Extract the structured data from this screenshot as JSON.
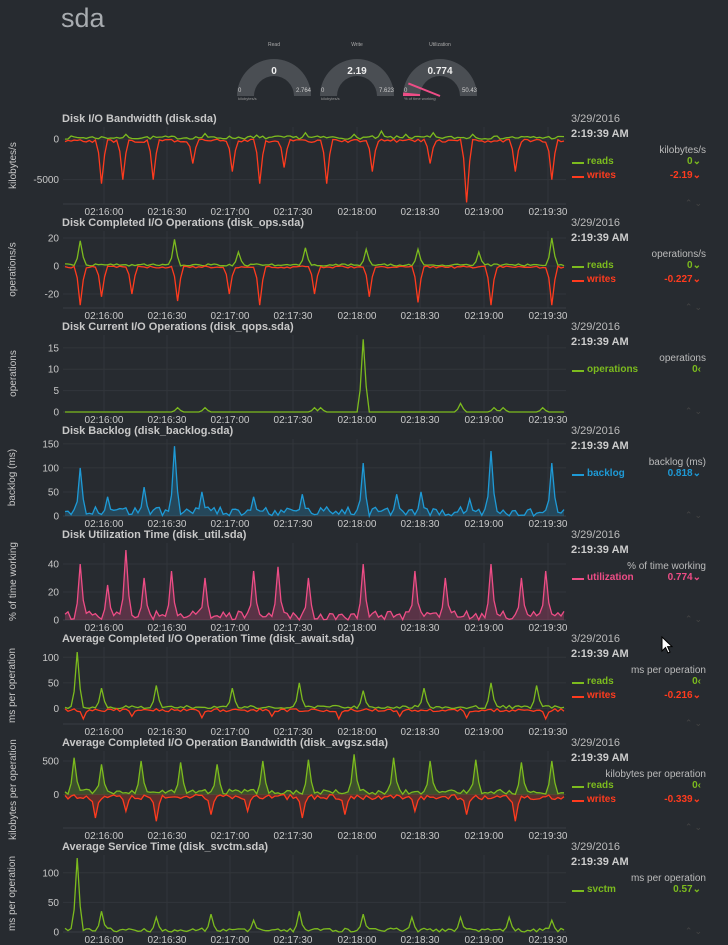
{
  "page_title": "sda",
  "gauges": [
    {
      "title": "Read",
      "value": "0",
      "min": "0",
      "max": "2.764",
      "unit": "kilobytes/s",
      "fraction": 0,
      "color": "#7cbb1e"
    },
    {
      "title": "Write",
      "value": "2.19",
      "min": "0",
      "max": "7.623",
      "unit": "kilobytes/s",
      "fraction": 0,
      "color": "#ff3b1e"
    },
    {
      "title": "Utilization",
      "value": "0.774",
      "min": "0",
      "max": "50.43",
      "unit": "% of time working",
      "fraction": 0.0153,
      "color": "#ee4d86"
    }
  ],
  "x_ticks": [
    "02:16:00",
    "02:16:30",
    "02:17:00",
    "02:17:30",
    "02:18:00",
    "02:18:30",
    "02:19:00",
    "02:19:30"
  ],
  "charts": [
    {
      "id": "sda-bandwidth",
      "title": "Disk I/O Bandwidth (disk.sda)",
      "ylabel": "kilobytes/s",
      "date": "3/29/2016",
      "time": "2:19:39 AM",
      "units": "kilobytes/s",
      "y_ticks": [
        "0",
        "-5000"
      ],
      "series": [
        {
          "name": "reads",
          "value": "0",
          "arrow": "⌄",
          "color": "#7cbb1e"
        },
        {
          "name": "writes",
          "value": "-2.19",
          "arrow": "⌄",
          "color": "#ff3b1e"
        }
      ]
    },
    {
      "id": "sda-ops",
      "title": "Disk Completed I/O Operations (disk_ops.sda)",
      "ylabel": "operations/s",
      "date": "3/29/2016",
      "time": "2:19:39 AM",
      "units": "operations/s",
      "y_ticks": [
        "20",
        "0",
        "-20"
      ],
      "series": [
        {
          "name": "reads",
          "value": "0",
          "arrow": "⌄",
          "color": "#7cbb1e"
        },
        {
          "name": "writes",
          "value": "-0.227",
          "arrow": "⌄",
          "color": "#ff3b1e"
        }
      ]
    },
    {
      "id": "sda-qops",
      "title": "Disk Current I/O Operations (disk_qops.sda)",
      "ylabel": "operations",
      "date": "3/29/2016",
      "time": "2:19:39 AM",
      "units": "operations",
      "y_ticks": [
        "15",
        "10",
        "5",
        "0"
      ],
      "series": [
        {
          "name": "operations",
          "value": "0",
          "arrow": "‹",
          "color": "#7cbb1e"
        }
      ]
    },
    {
      "id": "sda-backlog",
      "title": "Disk Backlog (disk_backlog.sda)",
      "ylabel": "backlog (ms)",
      "date": "3/29/2016",
      "time": "2:19:39 AM",
      "units": "backlog (ms)",
      "y_ticks": [
        "150",
        "100",
        "50",
        "0"
      ],
      "series": [
        {
          "name": "backlog",
          "value": "0.818",
          "arrow": "⌄",
          "color": "#1e9ad6"
        }
      ]
    },
    {
      "id": "sda-util",
      "title": "Disk Utilization Time (disk_util.sda)",
      "ylabel": "% of time working",
      "date": "3/29/2016",
      "time": "2:19:39 AM",
      "units": "% of time working",
      "y_ticks": [
        "40",
        "20",
        "0"
      ],
      "series": [
        {
          "name": "utilization",
          "value": "0.774",
          "arrow": "⌄",
          "color": "#ee4d86"
        }
      ]
    },
    {
      "id": "sda-await",
      "title": "Average Completed I/O Operation Time (disk_await.sda)",
      "ylabel": "ms per operation",
      "date": "3/29/2016",
      "time": "2:19:39 AM",
      "units": "ms per operation",
      "y_ticks": [
        "100",
        "50",
        "0"
      ],
      "series": [
        {
          "name": "reads",
          "value": "0",
          "arrow": "‹",
          "color": "#7cbb1e"
        },
        {
          "name": "writes",
          "value": "-0.216",
          "arrow": "⌄",
          "color": "#ff3b1e"
        }
      ]
    },
    {
      "id": "sda-avgsz",
      "title": "Average Completed I/O Operation Bandwidth (disk_avgsz.sda)",
      "ylabel": "kilobytes per operation",
      "date": "3/29/2016",
      "time": "2:19:39 AM",
      "units": "kilobytes per operation",
      "y_ticks": [
        "500",
        "0"
      ],
      "series": [
        {
          "name": "reads",
          "value": "0",
          "arrow": "‹",
          "color": "#7cbb1e"
        },
        {
          "name": "writes",
          "value": "-0.339",
          "arrow": "⌄",
          "color": "#ff3b1e"
        }
      ]
    },
    {
      "id": "sda-svctm",
      "title": "Average Service Time (disk_svctm.sda)",
      "ylabel": "ms per operation",
      "date": "3/29/2016",
      "time": "2:19:39 AM",
      "units": "ms per operation",
      "y_ticks": [
        "100",
        "50",
        "0"
      ],
      "series": [
        {
          "name": "svctm",
          "value": "0.57",
          "arrow": "⌄",
          "color": "#7cbb1e"
        }
      ]
    }
  ],
  "chart_data": [
    {
      "type": "line",
      "title": "Disk I/O Bandwidth (disk.sda)",
      "ylabel": "kilobytes/s",
      "x": [
        "02:16:00",
        "02:16:30",
        "02:17:00",
        "02:17:30",
        "02:18:00",
        "02:18:30",
        "02:19:00",
        "02:19:30"
      ],
      "ylim": [
        -8000,
        1500
      ],
      "series": [
        {
          "name": "reads",
          "spikes": [
            [
              20,
              600
            ],
            [
              46,
              700
            ],
            [
              63,
              500
            ],
            [
              79,
              800
            ],
            [
              95,
              600
            ],
            [
              104,
              1000
            ],
            [
              112,
              600
            ],
            [
              121,
              800
            ],
            [
              134,
              600
            ]
          ]
        },
        {
          "name": "writes",
          "spikes": [
            [
              12,
              -5500
            ],
            [
              19,
              -5000
            ],
            [
              29,
              -5000
            ],
            [
              42,
              -3000
            ],
            [
              55,
              -4000
            ],
            [
              64,
              -5500
            ],
            [
              72,
              -3500
            ],
            [
              86,
              -5500
            ],
            [
              101,
              -4000
            ],
            [
              120,
              -3000
            ],
            [
              132,
              -7800
            ],
            [
              148,
              -4000
            ],
            [
              160,
              -5000
            ]
          ]
        }
      ]
    },
    {
      "type": "line",
      "title": "Disk Completed I/O Operations (disk_ops.sda)",
      "ylabel": "operations/s",
      "x": [
        "02:16:00",
        "02:16:30",
        "02:17:00",
        "02:17:30",
        "02:18:00",
        "02:18:30",
        "02:19:00",
        "02:19:30"
      ],
      "ylim": [
        -30,
        25
      ],
      "series": [
        {
          "name": "reads",
          "spikes": [
            [
              5,
              18
            ],
            [
              36,
              19
            ],
            [
              57,
              10
            ],
            [
              79,
              13
            ],
            [
              99,
              12
            ],
            [
              116,
              12
            ],
            [
              136,
              10
            ],
            [
              160,
              20
            ]
          ]
        },
        {
          "name": "writes",
          "spikes": [
            [
              5,
              -28
            ],
            [
              12,
              -22
            ],
            [
              22,
              -20
            ],
            [
              37,
              -25
            ],
            [
              54,
              -20
            ],
            [
              64,
              -28
            ],
            [
              82,
              -20
            ],
            [
              100,
              -22
            ],
            [
              116,
              -26
            ],
            [
              140,
              -28
            ],
            [
              160,
              -28
            ]
          ]
        }
      ]
    },
    {
      "type": "line",
      "title": "Disk Current I/O Operations (disk_qops.sda)",
      "ylabel": "operations",
      "x": [
        "02:16:00",
        "02:16:30",
        "02:17:00",
        "02:17:30",
        "02:18:00",
        "02:18:30",
        "02:19:00",
        "02:19:30"
      ],
      "ylim": [
        0,
        18
      ],
      "series": [
        {
          "name": "operations",
          "spikes": [
            [
              37,
              1
            ],
            [
              46,
              1
            ],
            [
              82,
              1
            ],
            [
              84,
              1
            ],
            [
              98,
              17
            ],
            [
              130,
              2
            ],
            [
              141,
              1
            ],
            [
              144,
              1
            ],
            [
              157,
              1
            ]
          ]
        }
      ]
    },
    {
      "type": "area",
      "title": "Disk Backlog (disk_backlog.sda)",
      "ylabel": "backlog (ms)",
      "x": [
        "02:16:00",
        "02:16:30",
        "02:17:00",
        "02:17:30",
        "02:18:00",
        "02:18:30",
        "02:19:00",
        "02:19:30"
      ],
      "ylim": [
        0,
        160
      ],
      "series": [
        {
          "name": "backlog",
          "spikes": [
            [
              5,
              100
            ],
            [
              14,
              40
            ],
            [
              26,
              60
            ],
            [
              36,
              145
            ],
            [
              45,
              50
            ],
            [
              62,
              40
            ],
            [
              78,
              45
            ],
            [
              98,
              110
            ],
            [
              109,
              45
            ],
            [
              117,
              50
            ],
            [
              133,
              35
            ],
            [
              140,
              135
            ],
            [
              160,
              110
            ]
          ]
        }
      ]
    },
    {
      "type": "area",
      "title": "Disk Utilization Time (disk_util.sda)",
      "ylabel": "% of time working",
      "x": [
        "02:16:00",
        "02:16:30",
        "02:17:00",
        "02:17:30",
        "02:18:00",
        "02:18:30",
        "02:19:00",
        "02:19:30"
      ],
      "ylim": [
        0,
        55
      ],
      "series": [
        {
          "name": "utilization",
          "spikes": [
            [
              5,
              40
            ],
            [
              14,
              25
            ],
            [
              20,
              50
            ],
            [
              26,
              30
            ],
            [
              35,
              35
            ],
            [
              46,
              30
            ],
            [
              62,
              35
            ],
            [
              70,
              38
            ],
            [
              80,
              30
            ],
            [
              98,
              40
            ],
            [
              115,
              35
            ],
            [
              125,
              30
            ],
            [
              140,
              40
            ],
            [
              150,
              30
            ],
            [
              158,
              35
            ]
          ]
        }
      ]
    },
    {
      "type": "line",
      "title": "Average Completed I/O Operation Time (disk_await.sda)",
      "ylabel": "ms per operation",
      "x": [
        "02:16:00",
        "02:16:30",
        "02:17:00",
        "02:17:30",
        "02:18:00",
        "02:18:30",
        "02:19:00",
        "02:19:30"
      ],
      "ylim": [
        -30,
        120
      ],
      "series": [
        {
          "name": "reads",
          "spikes": [
            [
              4,
              110
            ],
            [
              12,
              40
            ],
            [
              30,
              45
            ],
            [
              55,
              40
            ],
            [
              77,
              50
            ],
            [
              98,
              35
            ],
            [
              118,
              40
            ],
            [
              140,
              50
            ],
            [
              155,
              45
            ]
          ]
        },
        {
          "name": "writes",
          "spikes": [
            [
              6,
              -20
            ],
            [
              22,
              -15
            ],
            [
              45,
              -18
            ],
            [
              68,
              -15
            ],
            [
              90,
              -20
            ],
            [
              110,
              -15
            ],
            [
              132,
              -18
            ],
            [
              158,
              -20
            ]
          ]
        }
      ]
    },
    {
      "type": "area",
      "title": "Average Completed I/O Operation Bandwidth (disk_avgsz.sda)",
      "ylabel": "kilobytes per operation",
      "x": [
        "02:16:00",
        "02:16:30",
        "02:17:00",
        "02:17:30",
        "02:18:00",
        "02:18:30",
        "02:19:00",
        "02:19:30"
      ],
      "ylim": [
        -500,
        650
      ],
      "series": [
        {
          "name": "reads",
          "spikes": [
            [
              3,
              550
            ],
            [
              12,
              450
            ],
            [
              25,
              500
            ],
            [
              38,
              480
            ],
            [
              50,
              450
            ],
            [
              65,
              500
            ],
            [
              80,
              520
            ],
            [
              95,
              600
            ],
            [
              108,
              550
            ],
            [
              120,
              500
            ],
            [
              135,
              520
            ],
            [
              150,
              480
            ],
            [
              160,
              500
            ]
          ]
        },
        {
          "name": "writes",
          "spikes": [
            [
              10,
              -350
            ],
            [
              20,
              -250
            ],
            [
              30,
              -400
            ],
            [
              48,
              -300
            ],
            [
              60,
              -250
            ],
            [
              78,
              -350
            ],
            [
              92,
              -300
            ],
            [
              115,
              -250
            ],
            [
              132,
              -300
            ],
            [
              148,
              -400
            ]
          ]
        }
      ]
    },
    {
      "type": "line",
      "title": "Average Service Time (disk_svctm.sda)",
      "ylabel": "ms per operation",
      "x": [
        "02:16:00",
        "02:16:30",
        "02:17:00",
        "02:17:30",
        "02:18:00",
        "02:18:30",
        "02:19:00",
        "02:19:30"
      ],
      "ylim": [
        0,
        130
      ],
      "series": [
        {
          "name": "svctm",
          "spikes": [
            [
              4,
              125
            ],
            [
              12,
              35
            ],
            [
              30,
              25
            ],
            [
              48,
              30
            ],
            [
              62,
              20
            ],
            [
              77,
              35
            ],
            [
              98,
              30
            ],
            [
              114,
              25
            ],
            [
              130,
              25
            ],
            [
              146,
              25
            ],
            [
              160,
              20
            ]
          ]
        }
      ]
    }
  ]
}
